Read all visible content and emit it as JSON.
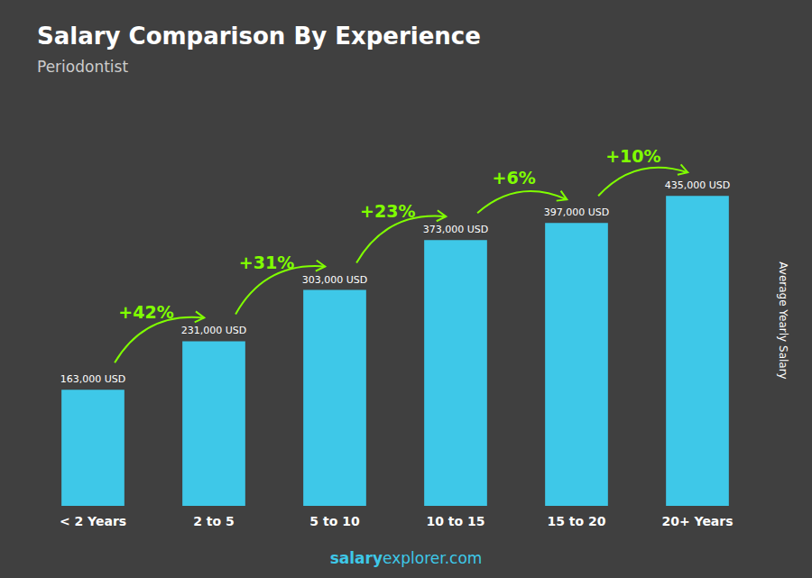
{
  "chart_data": {
    "type": "bar",
    "title": "Salary Comparison By Experience",
    "subtitle": "Periodontist",
    "categories": [
      "< 2 Years",
      "2 to 5",
      "5 to 10",
      "10 to 15",
      "15 to 20",
      "20+ Years"
    ],
    "values": [
      163000,
      231000,
      303000,
      373000,
      397000,
      435000
    ],
    "value_labels": [
      "163,000 USD",
      "231,000 USD",
      "303,000 USD",
      "373,000 USD",
      "397,000 USD",
      "435,000 USD"
    ],
    "data_labels": true,
    "color": "#3EC8E8",
    "annotations": {
      "labels": [
        "+42%",
        "+31%",
        "+23%",
        "+6%",
        "+10%"
      ],
      "color": "#80FF00"
    },
    "ylabel": "Average Yearly Salary",
    "footer": [
      "salary",
      "explorer.com"
    ],
    "ylim": [
      0,
      520000
    ],
    "tick_labels": "x",
    "grid": false
  }
}
